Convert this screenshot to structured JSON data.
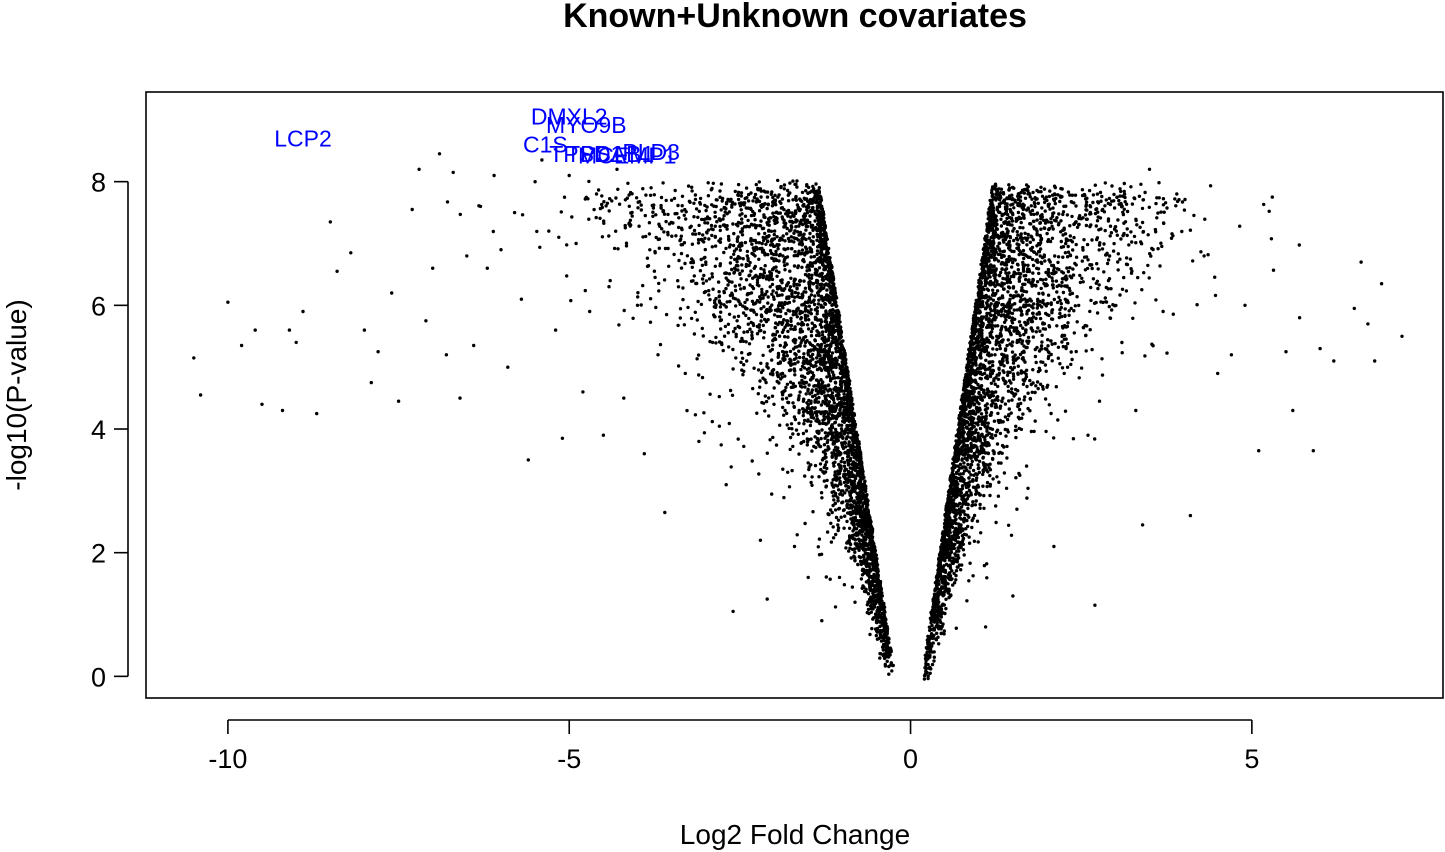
{
  "chart_data": {
    "type": "scatter",
    "title": "Known+Unknown covariates",
    "xlabel": "Log2 Fold Change",
    "ylabel": "-log10(P-value)",
    "xlim": [
      -11.2,
      7.8
    ],
    "ylim": [
      -0.35,
      9.45
    ],
    "x_ticks": [
      -10,
      -5,
      0,
      5
    ],
    "x_tick_labels": [
      "-10",
      "-5",
      "0",
      "5"
    ],
    "y_ticks": [
      0,
      2,
      4,
      6,
      8
    ],
    "y_tick_labels": [
      "0",
      "2",
      "4",
      "6",
      "8"
    ],
    "grid": false,
    "legend": "none",
    "point_color": "#000000",
    "label_color": "#0000ff",
    "highlighted_genes": [
      {
        "name": "LCP2",
        "x": -8.9,
        "y": 8.7
      },
      {
        "name": "DMXL2",
        "x": -5.0,
        "y": 9.05
      },
      {
        "name": "MYO9B",
        "x": -4.75,
        "y": 8.92
      },
      {
        "name": "C1S",
        "x": -5.35,
        "y": 8.6
      },
      {
        "name": "TPSAB1",
        "x": -4.4,
        "y": 8.45
      },
      {
        "name": "TPSD1",
        "x": -4.75,
        "y": 8.45
      },
      {
        "name": "PLD3",
        "x": -3.8,
        "y": 8.48
      },
      {
        "name": "MCEMP1",
        "x": -4.15,
        "y": 8.42
      }
    ],
    "series": [
      {
        "points": [
          [
            -10.5,
            5.15
          ],
          [
            -10.4,
            4.55
          ],
          [
            -10.0,
            6.05
          ],
          [
            -9.8,
            5.35
          ],
          [
            -9.6,
            5.6
          ],
          [
            -9.5,
            4.4
          ],
          [
            -9.2,
            4.3
          ],
          [
            -9.1,
            5.6
          ],
          [
            -9.0,
            5.4
          ],
          [
            -8.9,
            5.9
          ],
          [
            -8.7,
            4.25
          ],
          [
            -8.5,
            7.35
          ],
          [
            -8.4,
            6.55
          ],
          [
            -8.2,
            6.85
          ],
          [
            -8.0,
            5.6
          ],
          [
            -7.9,
            4.75
          ],
          [
            -7.8,
            5.25
          ],
          [
            -7.6,
            6.2
          ],
          [
            -7.5,
            4.45
          ],
          [
            -7.3,
            7.55
          ],
          [
            -7.2,
            8.2
          ],
          [
            -7.1,
            5.75
          ],
          [
            -7.0,
            6.6
          ],
          [
            -6.9,
            8.45
          ],
          [
            -6.8,
            5.2
          ],
          [
            -6.7,
            8.15
          ],
          [
            -6.6,
            4.5
          ],
          [
            -6.5,
            6.8
          ],
          [
            -6.4,
            5.35
          ],
          [
            -6.3,
            7.6
          ],
          [
            -6.2,
            6.6
          ],
          [
            -6.1,
            8.1
          ],
          [
            -6.0,
            6.9
          ],
          [
            -5.9,
            5.0
          ],
          [
            -5.8,
            7.5
          ],
          [
            -5.7,
            6.1
          ],
          [
            -5.6,
            3.5
          ],
          [
            -5.5,
            8.0
          ],
          [
            -5.4,
            8.35
          ],
          [
            -5.3,
            7.2
          ],
          [
            -5.2,
            5.6
          ],
          [
            -5.1,
            3.85
          ],
          [
            -5.0,
            8.1
          ],
          [
            -4.9,
            7.0
          ],
          [
            -4.8,
            4.6
          ],
          [
            -4.7,
            5.9
          ],
          [
            -4.6,
            7.8
          ],
          [
            -4.5,
            3.9
          ],
          [
            -4.4,
            6.4
          ],
          [
            -4.3,
            8.2
          ],
          [
            -4.2,
            4.5
          ],
          [
            -4.1,
            7.3
          ],
          [
            -4.0,
            6.0
          ],
          [
            -3.9,
            3.6
          ],
          [
            -3.8,
            7.9
          ],
          [
            -3.7,
            5.2
          ],
          [
            -3.6,
            2.65
          ],
          [
            -3.5,
            7.7
          ],
          [
            -3.4,
            6.3
          ],
          [
            -3.3,
            4.9
          ],
          [
            -3.2,
            7.85
          ],
          [
            -3.1,
            3.8
          ],
          [
            -3.0,
            6.7
          ],
          [
            -2.9,
            5.4
          ],
          [
            -2.8,
            7.4
          ],
          [
            -2.7,
            3.1
          ],
          [
            -2.6,
            1.05
          ],
          [
            -2.5,
            6.5
          ],
          [
            -2.4,
            5.1
          ],
          [
            -2.3,
            7.05
          ],
          [
            -2.2,
            2.2
          ],
          [
            -2.1,
            1.25
          ],
          [
            -2.0,
            4.4
          ],
          [
            -1.9,
            6.4
          ],
          [
            -1.8,
            3.3
          ],
          [
            -1.7,
            2.1
          ],
          [
            -1.6,
            5.8
          ],
          [
            -1.5,
            1.6
          ],
          [
            -1.4,
            4.7
          ],
          [
            -1.3,
            0.9
          ],
          [
            5.1,
            3.65
          ],
          [
            5.3,
            7.75
          ],
          [
            5.5,
            5.25
          ],
          [
            5.6,
            4.3
          ],
          [
            5.7,
            5.8
          ],
          [
            5.9,
            3.65
          ],
          [
            6.0,
            5.3
          ],
          [
            6.2,
            5.1
          ],
          [
            6.5,
            5.95
          ],
          [
            6.6,
            6.7
          ],
          [
            6.7,
            5.7
          ],
          [
            6.8,
            5.1
          ],
          [
            6.9,
            6.35
          ],
          [
            7.2,
            5.5
          ],
          [
            4.9,
            6.0
          ],
          [
            4.7,
            5.2
          ],
          [
            4.5,
            4.9
          ],
          [
            4.3,
            6.8
          ],
          [
            4.1,
            2.6
          ],
          [
            3.9,
            7.8
          ],
          [
            3.7,
            5.9
          ],
          [
            3.5,
            8.2
          ],
          [
            3.4,
            2.45
          ],
          [
            3.3,
            4.3
          ],
          [
            3.1,
            7.6
          ],
          [
            2.9,
            6.4
          ],
          [
            2.7,
            1.15
          ],
          [
            2.6,
            3.9
          ],
          [
            2.5,
            7.4
          ],
          [
            2.3,
            5.0
          ],
          [
            2.1,
            2.1
          ],
          [
            1.9,
            6.8
          ],
          [
            1.7,
            3.4
          ],
          [
            1.5,
            1.3
          ],
          [
            1.3,
            5.4
          ],
          [
            1.1,
            0.8
          ]
        ]
      }
    ]
  }
}
